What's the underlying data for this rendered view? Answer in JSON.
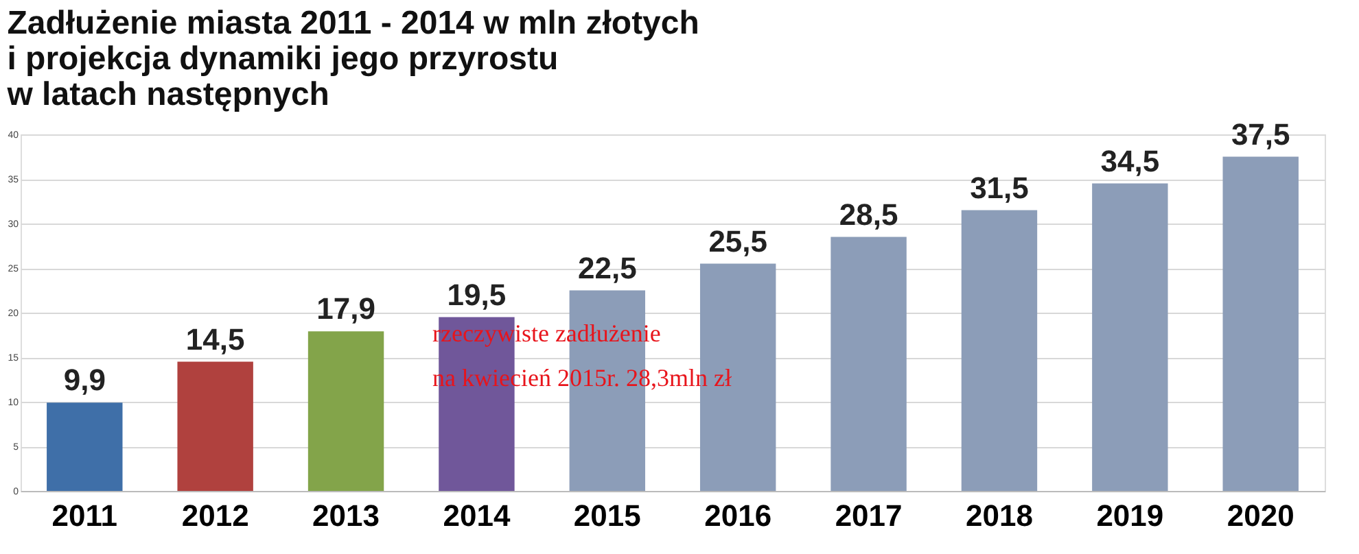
{
  "chart_data": {
    "type": "bar",
    "title": [
      "Zadłużenie miasta 2011 - 2014 w mln złotych",
      "i projekcja dynamiki  jego przyrostu",
      "w latach następnych"
    ],
    "categories": [
      "2011",
      "2012",
      "2013",
      "2014",
      "2015",
      "2016",
      "2017",
      "2018",
      "2019",
      "2020"
    ],
    "values": [
      9.9,
      14.5,
      17.9,
      19.5,
      22.5,
      25.5,
      28.5,
      31.5,
      34.5,
      37.5
    ],
    "colors": [
      "#3f6fa8",
      "#b0413e",
      "#83a44a",
      "#70579a",
      "#8c9db8",
      "#8c9db8",
      "#8c9db8",
      "#8c9db8",
      "#8c9db8",
      "#8c9db8"
    ],
    "value_labels": [
      "9,9",
      "14,5",
      "17,9",
      "19,5",
      "22,5",
      "25,5",
      "28,5",
      "31,5",
      "34,5",
      "37,5"
    ],
    "ylim": [
      0,
      40
    ],
    "yticks": [
      0,
      5,
      10,
      15,
      20,
      25,
      30,
      35,
      40
    ],
    "grid": "y",
    "annotations": [
      "rzeczywiste zadłużenie",
      "na kwiecień 2015r. 28,3mln zł"
    ]
  }
}
